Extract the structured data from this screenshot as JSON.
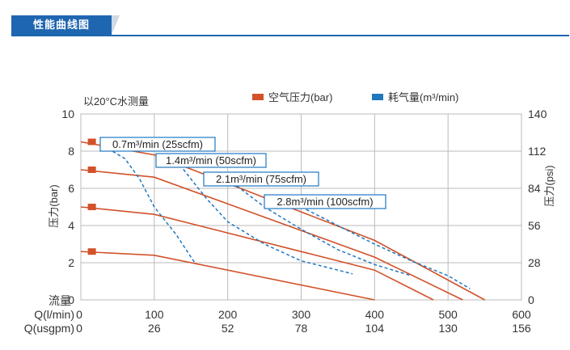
{
  "header": {
    "title": "性能曲线图"
  },
  "chart_data": {
    "type": "line",
    "note_top_left": "以20°C水测量",
    "legend": [
      {
        "label": "空气压力(bar)",
        "color": "#d2522a"
      },
      {
        "label": "耗气量(m³/min)",
        "color": "#1f77c0"
      }
    ],
    "left_axis": {
      "label": "压力(bar)",
      "range": [
        0,
        10
      ],
      "ticks": [
        "0",
        "2",
        "4",
        "6",
        "8",
        "10"
      ]
    },
    "right_axis": {
      "label": "压力(psi)",
      "range": [
        0,
        140
      ],
      "ticks": [
        "0",
        "28",
        "56",
        "84",
        "112",
        "140"
      ]
    },
    "x_axis": {
      "flow_label": "流量",
      "rows": [
        {
          "label": "Q(l/min)",
          "ticks": [
            "0",
            "100",
            "200",
            "300",
            "400",
            "500",
            "600"
          ]
        },
        {
          "label": "Q(usgpm)",
          "ticks": [
            "0",
            "26",
            "52",
            "78",
            "104",
            "130",
            "156"
          ]
        }
      ],
      "range": [
        0,
        600
      ]
    },
    "grid": true,
    "series": [
      {
        "type": "pressure",
        "values": [
          [
            0,
            2.6
          ],
          [
            100,
            2.4
          ],
          [
            400,
            0
          ]
        ]
      },
      {
        "type": "pressure",
        "values": [
          [
            0,
            5.0
          ],
          [
            100,
            4.6
          ],
          [
            400,
            1.6
          ],
          [
            480,
            0
          ]
        ]
      },
      {
        "type": "pressure",
        "values": [
          [
            0,
            7.0
          ],
          [
            100,
            6.6
          ],
          [
            400,
            2.3
          ],
          [
            520,
            0
          ]
        ]
      },
      {
        "type": "pressure",
        "values": [
          [
            0,
            8.5
          ],
          [
            100,
            7.8
          ],
          [
            400,
            3.2
          ],
          [
            550,
            0
          ]
        ]
      },
      {
        "type": "air",
        "name": "0.7m³/min (25scfm)",
        "values": [
          [
            30,
            8.3
          ],
          [
            60,
            7.6
          ],
          [
            80,
            6.5
          ],
          [
            100,
            5.0
          ],
          [
            130,
            3.5
          ],
          [
            155,
            2.0
          ]
        ]
      },
      {
        "type": "air",
        "name": "1.4m³/min (50scfm)",
        "values": [
          [
            130,
            7.5
          ],
          [
            170,
            5.5
          ],
          [
            200,
            4.2
          ],
          [
            250,
            3.0
          ],
          [
            300,
            2.1
          ],
          [
            370,
            1.4
          ]
        ]
      },
      {
        "type": "air",
        "name": "2.1m³/min (75scfm)",
        "values": [
          [
            200,
            6.5
          ],
          [
            250,
            5.0
          ],
          [
            300,
            3.8
          ],
          [
            350,
            2.7
          ],
          [
            400,
            1.9
          ],
          [
            450,
            1.3
          ]
        ]
      },
      {
        "type": "air",
        "name": "2.8m³/min (100scfm)",
        "values": [
          [
            300,
            5.0
          ],
          [
            350,
            4.0
          ],
          [
            400,
            3.0
          ],
          [
            450,
            2.1
          ],
          [
            500,
            1.3
          ],
          [
            530,
            0.6
          ]
        ]
      }
    ],
    "pressure_markers": [
      2.6,
      5.0,
      7.0,
      8.5
    ],
    "callouts": [
      {
        "text": "0.7m³/min (25scfm)",
        "points_to": [
          30,
          8.3
        ]
      },
      {
        "text": "1.4m³/min (50scfm)",
        "points_to": [
          130,
          7.5
        ]
      },
      {
        "text": "2.1m³/min (75scfm)",
        "points_to": [
          200,
          6.5
        ]
      },
      {
        "text": "2.8m³/min (100scfm)",
        "points_to": [
          300,
          5.0
        ]
      }
    ]
  }
}
